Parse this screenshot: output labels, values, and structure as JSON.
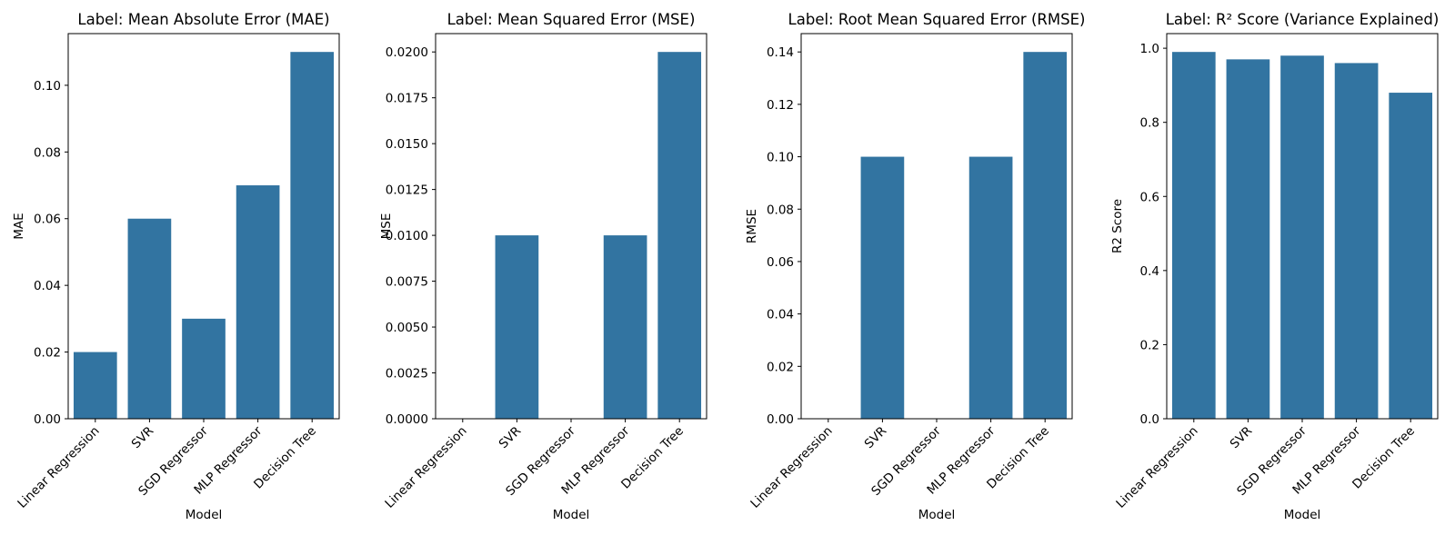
{
  "chart_data": [
    {
      "type": "bar",
      "title": "Label: Mean Absolute Error (MAE)",
      "xlabel": "Model",
      "ylabel": "MAE",
      "categories": [
        "Linear Regression",
        "SVR",
        "SGD Regressor",
        "MLP Regressor",
        "Decision Tree"
      ],
      "values": [
        0.02,
        0.06,
        0.03,
        0.07,
        0.11
      ],
      "ylim": [
        0,
        0.1155
      ],
      "yticks": [
        0.0,
        0.02,
        0.04,
        0.06,
        0.08,
        0.1
      ],
      "ytick_labels": [
        "0.00",
        "0.02",
        "0.04",
        "0.06",
        "0.08",
        "0.10"
      ],
      "color": "#3274a1",
      "grid": false
    },
    {
      "type": "bar",
      "title": "Label: Mean Squared Error (MSE)",
      "xlabel": "Model",
      "ylabel": "MSE",
      "categories": [
        "Linear Regression",
        "SVR",
        "SGD Regressor",
        "MLP Regressor",
        "Decision Tree"
      ],
      "values": [
        0.0,
        0.01,
        0.0,
        0.01,
        0.02
      ],
      "ylim": [
        0,
        0.021
      ],
      "yticks": [
        0.0,
        0.0025,
        0.005,
        0.0075,
        0.01,
        0.0125,
        0.015,
        0.0175,
        0.02
      ],
      "ytick_labels": [
        "0.0000",
        "0.0025",
        "0.0050",
        "0.0075",
        "0.0100",
        "0.0125",
        "0.0150",
        "0.0175",
        "0.0200"
      ],
      "color": "#3274a1",
      "grid": false
    },
    {
      "type": "bar",
      "title": "Label: Root Mean Squared Error (RMSE)",
      "xlabel": "Model",
      "ylabel": "RMSE",
      "categories": [
        "Linear Regression",
        "SVR",
        "SGD Regressor",
        "MLP Regressor",
        "Decision Tree"
      ],
      "values": [
        0.0,
        0.1,
        0.0,
        0.1,
        0.14
      ],
      "ylim": [
        0,
        0.147
      ],
      "yticks": [
        0.0,
        0.02,
        0.04,
        0.06,
        0.08,
        0.1,
        0.12,
        0.14
      ],
      "ytick_labels": [
        "0.00",
        "0.02",
        "0.04",
        "0.06",
        "0.08",
        "0.10",
        "0.12",
        "0.14"
      ],
      "color": "#3274a1",
      "grid": false
    },
    {
      "type": "bar",
      "title": "Label: R² Score (Variance Explained)",
      "xlabel": "Model",
      "ylabel": "R2 Score",
      "categories": [
        "Linear Regression",
        "SVR",
        "SGD Regressor",
        "MLP Regressor",
        "Decision Tree"
      ],
      "values": [
        0.99,
        0.97,
        0.98,
        0.96,
        0.88
      ],
      "ylim": [
        0,
        1.0395
      ],
      "yticks": [
        0.0,
        0.2,
        0.4,
        0.6,
        0.8,
        1.0
      ],
      "ytick_labels": [
        "0.0",
        "0.2",
        "0.4",
        "0.6",
        "0.8",
        "1.0"
      ],
      "color": "#3274a1",
      "grid": false
    }
  ]
}
